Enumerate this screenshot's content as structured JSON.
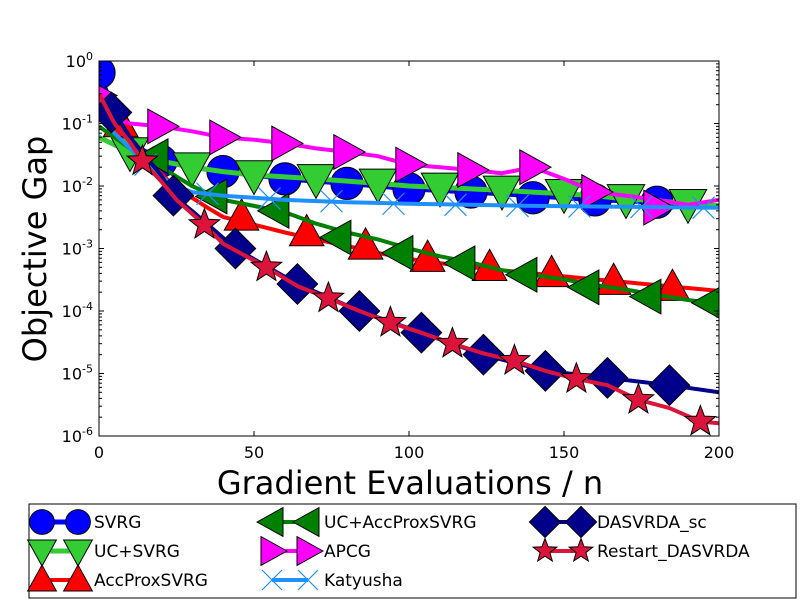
{
  "chart_data": {
    "type": "line",
    "title": "",
    "xlabel": "Gradient Evaluations / n",
    "ylabel": "Objective Gap",
    "xlim": [
      0,
      200
    ],
    "ylim_log10": [
      -6,
      0
    ],
    "yscale": "log",
    "x_ticks": [
      0,
      50,
      100,
      150,
      200
    ],
    "y_ticks": [
      {
        "base": "10",
        "exp": "0"
      },
      {
        "base": "10",
        "exp": "-1"
      },
      {
        "base": "10",
        "exp": "-2"
      },
      {
        "base": "10",
        "exp": "-3"
      },
      {
        "base": "10",
        "exp": "-4"
      },
      {
        "base": "10",
        "exp": "-5"
      },
      {
        "base": "10",
        "exp": "-6"
      }
    ],
    "grid": false,
    "legend_position": "bottom",
    "series": [
      {
        "name": "SVRG",
        "color": "#0000ff",
        "marker": "circle",
        "x": [
          0,
          5,
          10,
          20,
          30,
          40,
          50,
          60,
          70,
          80,
          90,
          100,
          110,
          120,
          130,
          140,
          150,
          160,
          170,
          180,
          190,
          200
        ],
        "y": [
          0.65,
          0.15,
          0.05,
          0.025,
          0.02,
          0.017,
          0.015,
          0.013,
          0.012,
          0.011,
          0.01,
          0.009,
          0.0085,
          0.008,
          0.0075,
          0.007,
          0.0065,
          0.006,
          0.0058,
          0.0055,
          0.005,
          0.0048
        ],
        "mx": [
          0,
          20,
          40,
          60,
          80,
          100,
          120,
          140,
          160,
          180
        ],
        "my": [
          0.65,
          0.025,
          0.017,
          0.013,
          0.011,
          0.009,
          0.008,
          0.0065,
          0.006,
          0.0055
        ]
      },
      {
        "name": "UC+SVRG",
        "color": "#33cc33",
        "marker": "triangle-down",
        "x": [
          0,
          10,
          20,
          30,
          40,
          50,
          60,
          70,
          80,
          90,
          100,
          110,
          120,
          130,
          140,
          150,
          160,
          170,
          180,
          190,
          200
        ],
        "y": [
          0.06,
          0.035,
          0.025,
          0.02,
          0.017,
          0.015,
          0.014,
          0.013,
          0.012,
          0.011,
          0.01,
          0.0095,
          0.009,
          0.0085,
          0.008,
          0.0075,
          0.007,
          0.0062,
          0.0058,
          0.0052,
          0.0048
        ],
        "mx": [
          10,
          30,
          50,
          70,
          90,
          110,
          130,
          150,
          170,
          190
        ],
        "my": [
          0.035,
          0.02,
          0.015,
          0.013,
          0.011,
          0.0095,
          0.0085,
          0.0075,
          0.0062,
          0.0052
        ]
      },
      {
        "name": "AccProxSVRG",
        "color": "#ff0000",
        "marker": "triangle-up",
        "x": [
          0,
          5,
          10,
          15,
          20,
          25,
          30,
          35,
          40,
          50,
          60,
          70,
          80,
          90,
          100,
          120,
          140,
          160,
          180,
          200
        ],
        "y": [
          0.4,
          0.13,
          0.06,
          0.03,
          0.016,
          0.009,
          0.0065,
          0.0045,
          0.0032,
          0.0024,
          0.0018,
          0.0014,
          0.0011,
          0.00085,
          0.00068,
          0.0005,
          0.0004,
          0.00032,
          0.00026,
          0.00021
        ],
        "mx": [
          7,
          46,
          67,
          86,
          106,
          126,
          146,
          166,
          185
        ],
        "my": [
          0.1,
          0.0032,
          0.0018,
          0.0011,
          0.0007,
          0.0005,
          0.0004,
          0.0003,
          0.00024
        ]
      },
      {
        "name": "UC+AccProxSVRG",
        "color": "#008000",
        "marker": "triangle-left",
        "x": [
          0,
          10,
          20,
          30,
          40,
          50,
          60,
          70,
          80,
          90,
          100,
          110,
          120,
          130,
          140,
          150,
          160,
          170,
          180,
          190,
          200
        ],
        "y": [
          0.09,
          0.04,
          0.02,
          0.01,
          0.006,
          0.0048,
          0.0038,
          0.0025,
          0.0018,
          0.0014,
          0.001,
          0.00075,
          0.0006,
          0.00045,
          0.00038,
          0.00032,
          0.00026,
          0.00022,
          0.00018,
          0.00015,
          0.00013
        ],
        "mx": [
          18,
          37,
          57,
          77,
          97,
          117,
          137,
          157,
          177,
          197
        ],
        "my": [
          0.03,
          0.0068,
          0.004,
          0.0015,
          0.00085,
          0.00058,
          0.00038,
          0.00024,
          0.00017,
          0.000135
        ]
      },
      {
        "name": "APCG",
        "color": "#ff00ff",
        "marker": "triangle-right",
        "x": [
          0,
          5,
          10,
          20,
          30,
          40,
          50,
          60,
          70,
          80,
          90,
          100,
          110,
          120,
          130,
          140,
          150,
          160,
          170,
          180,
          190,
          200
        ],
        "y": [
          0.28,
          0.12,
          0.1,
          0.09,
          0.075,
          0.06,
          0.055,
          0.048,
          0.04,
          0.035,
          0.03,
          0.022,
          0.02,
          0.018,
          0.016,
          0.02,
          0.013,
          0.008,
          0.007,
          0.006,
          0.005,
          0.006
        ],
        "mx": [
          0,
          20,
          40,
          60,
          80,
          100,
          120,
          140,
          160,
          180
        ],
        "my": [
          0.28,
          0.09,
          0.06,
          0.048,
          0.035,
          0.022,
          0.018,
          0.02,
          0.008,
          0.0045
        ]
      },
      {
        "name": "Katyusha",
        "color": "#1e90ff",
        "marker": "x",
        "x": [
          0,
          5,
          10,
          15,
          20,
          25,
          30,
          40,
          50,
          60,
          80,
          100,
          120,
          140,
          160,
          180,
          200
        ],
        "y": [
          0.12,
          0.07,
          0.04,
          0.022,
          0.014,
          0.01,
          0.008,
          0.007,
          0.0065,
          0.006,
          0.0055,
          0.0052,
          0.005,
          0.0048,
          0.0047,
          0.0046,
          0.0045
        ],
        "mx": [
          15,
          35,
          55,
          75,
          95,
          115,
          135,
          155,
          175,
          195
        ],
        "my": [
          0.022,
          0.0075,
          0.0063,
          0.0057,
          0.0052,
          0.005,
          0.0048,
          0.0047,
          0.0046,
          0.0045
        ]
      },
      {
        "name": "DASVRDA_sc",
        "color": "#00008b",
        "marker": "diamond",
        "x": [
          0,
          5,
          10,
          15,
          20,
          24,
          30,
          44,
          64,
          84,
          104,
          124,
          144,
          164,
          184,
          200
        ],
        "y": [
          0.2,
          0.15,
          0.06,
          0.03,
          0.015,
          0.007,
          0.004,
          0.001,
          0.00027,
          0.0001,
          4.5e-05,
          2e-05,
          1.1e-05,
          8.5e-06,
          6.5e-06,
          5e-06
        ],
        "mx": [
          4,
          24,
          44,
          64,
          84,
          104,
          124,
          144,
          164,
          184
        ],
        "my": [
          0.15,
          0.007,
          0.001,
          0.00027,
          0.0001,
          4.5e-05,
          2e-05,
          1.1e-05,
          8.5e-06,
          6.5e-06
        ]
      },
      {
        "name": "Restart_DASVRDA",
        "color": "#dc143c",
        "marker": "star",
        "x": [
          0,
          5,
          10,
          14,
          20,
          25,
          34,
          40,
          54,
          64,
          74,
          84,
          94,
          104,
          114,
          124,
          134,
          144,
          154,
          164,
          174,
          184,
          194,
          200
        ],
        "y": [
          0.3,
          0.1,
          0.05,
          0.025,
          0.012,
          0.006,
          0.0024,
          0.0012,
          0.0005,
          0.00025,
          0.00016,
          0.0001,
          6.5e-05,
          4.5e-05,
          3e-05,
          2.1e-05,
          1.6e-05,
          1.1e-05,
          8.2e-06,
          6.5e-06,
          3.8e-06,
          2.8e-06,
          1.7e-06,
          1.6e-06
        ],
        "mx": [
          14,
          34,
          54,
          74,
          94,
          114,
          134,
          154,
          174,
          194
        ],
        "my": [
          0.025,
          0.0024,
          0.0005,
          0.00016,
          6.5e-05,
          3e-05,
          1.6e-05,
          8.2e-06,
          3.8e-06,
          1.7e-06
        ]
      }
    ]
  }
}
